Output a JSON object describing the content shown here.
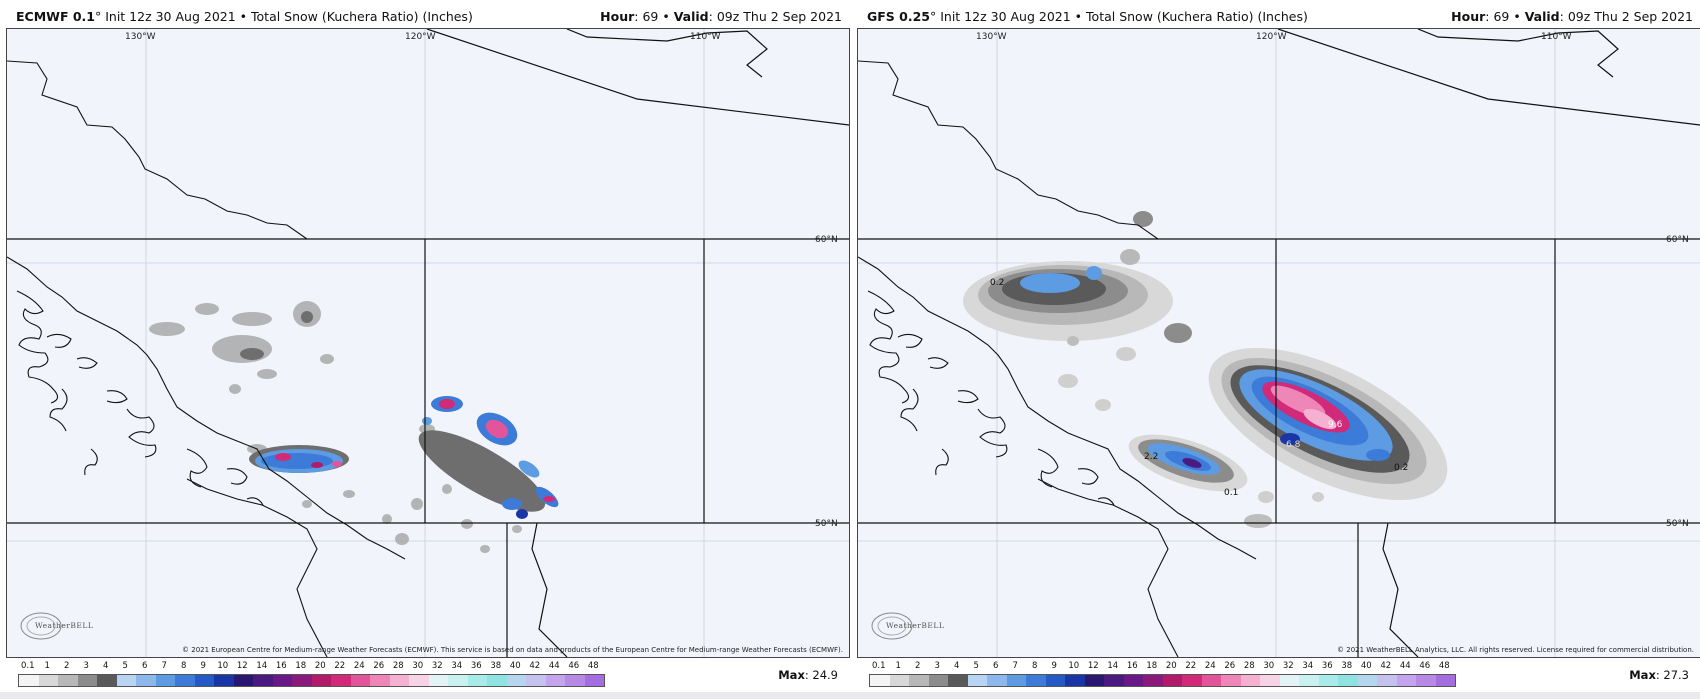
{
  "panels": [
    {
      "title_model": "ECMWF 0.1",
      "title_deg": "°",
      "title_init": " Init 12z 30 Aug 2021",
      "title_sep": " • ",
      "title_product": "Total Snow (Kuchera Ratio) (Inches)",
      "hour_label": "Hour",
      "hour_value": ": 69 • ",
      "valid_label": "Valid",
      "valid_value": ": 09z Thu 2 Sep 2021",
      "max_label": "Max",
      "max_value": ": 24.9",
      "copyright": "© 2021 European Centre for Medium-range Weather Forecasts (ECMWF). This service is based on data and products of the European Centre for Medium-range Weather Forecasts (ECMWF).",
      "contour_labels": []
    },
    {
      "title_model": "GFS 0.25",
      "title_deg": "°",
      "title_init": " Init 12z 30 Aug 2021",
      "title_sep": " • ",
      "title_product": "Total Snow (Kuchera Ratio) (Inches)",
      "hour_label": "Hour",
      "hour_value": ": 69 • ",
      "valid_label": "Valid",
      "valid_value": ": 09z Thu 2 Sep 2021",
      "max_label": "Max",
      "max_value": ": 27.3",
      "copyright": "© 2021 WeatherBELL Analytics, LLC. All rights reserved. License required for commercial distribution.",
      "contour_labels": [
        "0.2",
        "9.6",
        "0.2",
        "2.2",
        "0.1",
        "6.8"
      ]
    }
  ],
  "axes": {
    "lon_labels": [
      "130°W",
      "120°W",
      "110°W"
    ],
    "lat_labels": [
      "60°N",
      "50°N"
    ]
  },
  "logo_text": "WeatherBELL",
  "legend": {
    "labels": [
      "0.1",
      "1",
      "2",
      "3",
      "4",
      "5",
      "6",
      "7",
      "8",
      "9",
      "10",
      "12",
      "14",
      "16",
      "18",
      "20",
      "22",
      "24",
      "26",
      "28",
      "30",
      "32",
      "34",
      "36",
      "38",
      "40",
      "42",
      "44",
      "46",
      "48"
    ],
    "colors": [
      "#f4f4f4",
      "#d8d8d8",
      "#b8b8b8",
      "#8c8c8c",
      "#5a5a5a",
      "#b9d3f2",
      "#8db8ec",
      "#5d9be2",
      "#3d7bd8",
      "#2459c6",
      "#1a36a6",
      "#2a1870",
      "#4a1a80",
      "#6a1a88",
      "#8a1a7c",
      "#b21a6a",
      "#d12a78",
      "#e3559a",
      "#ef86b8",
      "#f5b1d1",
      "#f7d3e5",
      "#e4f3f6",
      "#c8f1f0",
      "#a7ece8",
      "#8fe3e0",
      "#b4d6ee",
      "#c6c2f0",
      "#c4a4ec",
      "#b78ae6",
      "#a46de0"
    ]
  },
  "colors": {
    "map_bg": "#f1f4fb",
    "line": "#111111"
  }
}
